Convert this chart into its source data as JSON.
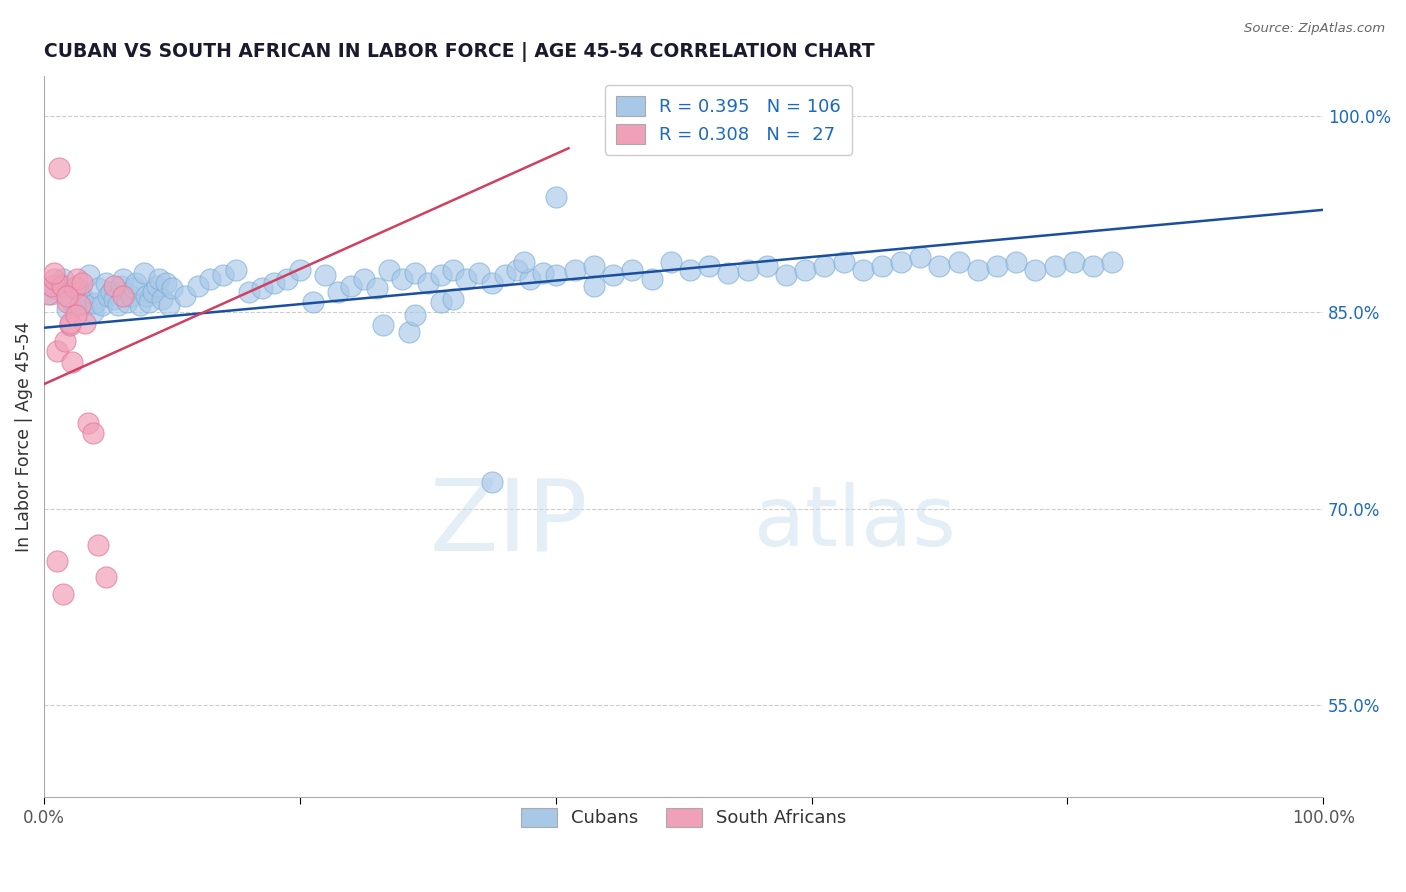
{
  "title": "CUBAN VS SOUTH AFRICAN IN LABOR FORCE | AGE 45-54 CORRELATION CHART",
  "source": "Source: ZipAtlas.com",
  "ylabel": "In Labor Force | Age 45-54",
  "ytick_vals": [
    0.55,
    0.7,
    0.85,
    1.0
  ],
  "ytick_labels": [
    "55.0%",
    "70.0%",
    "85.0%",
    "100.0%"
  ],
  "legend_r_cuban": "0.395",
  "legend_n_cuban": "106",
  "legend_r_sa": "0.308",
  "legend_n_sa": "27",
  "watermark_zip": "ZIP",
  "watermark_atlas": "atlas",
  "blue_scatter": "#a8c8e8",
  "blue_edge": "#7aacd4",
  "pink_scatter": "#f0a0b8",
  "pink_edge": "#e07898",
  "blue_line": "#1a4fa0",
  "pink_line": "#d04060",
  "legend_val_color": "#1a6abf",
  "legend_label_color": "#333333",
  "title_color": "#1a1a2e",
  "ylabel_color": "#333333",
  "tick_color": "#555555",
  "grid_color": "#cccccc",
  "right_tick_color": "#1a6abf",
  "background": "#ffffff",
  "xmin": 0.0,
  "xmax": 1.0,
  "ymin": 0.48,
  "ymax": 1.03,
  "blue_trend_x0": 0.0,
  "blue_trend_x1": 1.0,
  "blue_trend_y0": 0.838,
  "blue_trend_y1": 0.928,
  "pink_trend_x0": 0.0,
  "pink_trend_x1": 0.41,
  "pink_trend_y0": 0.795,
  "pink_trend_y1": 0.975,
  "cubans_x": [
    0.005,
    0.008,
    0.012,
    0.015,
    0.018,
    0.02,
    0.022,
    0.025,
    0.028,
    0.03,
    0.032,
    0.035,
    0.038,
    0.04,
    0.042,
    0.045,
    0.048,
    0.05,
    0.052,
    0.055,
    0.058,
    0.06,
    0.062,
    0.065,
    0.068,
    0.07,
    0.072,
    0.075,
    0.078,
    0.08,
    0.082,
    0.085,
    0.088,
    0.09,
    0.092,
    0.095,
    0.098,
    0.1,
    0.11,
    0.12,
    0.13,
    0.14,
    0.15,
    0.16,
    0.17,
    0.18,
    0.19,
    0.2,
    0.21,
    0.22,
    0.23,
    0.24,
    0.25,
    0.26,
    0.27,
    0.28,
    0.29,
    0.3,
    0.31,
    0.32,
    0.33,
    0.34,
    0.35,
    0.36,
    0.37,
    0.38,
    0.39,
    0.4,
    0.415,
    0.43,
    0.445,
    0.46,
    0.475,
    0.49,
    0.505,
    0.52,
    0.535,
    0.55,
    0.565,
    0.58,
    0.595,
    0.61,
    0.625,
    0.64,
    0.655,
    0.67,
    0.685,
    0.7,
    0.715,
    0.73,
    0.745,
    0.76,
    0.775,
    0.79,
    0.805,
    0.82,
    0.835,
    0.35,
    0.285,
    0.29,
    0.31,
    0.265,
    0.32,
    0.4,
    0.43,
    0.375
  ],
  "cubans_y": [
    0.864,
    0.868,
    0.872,
    0.875,
    0.852,
    0.86,
    0.858,
    0.87,
    0.865,
    0.862,
    0.855,
    0.878,
    0.85,
    0.857,
    0.868,
    0.855,
    0.872,
    0.862,
    0.865,
    0.86,
    0.855,
    0.87,
    0.875,
    0.858,
    0.862,
    0.868,
    0.872,
    0.855,
    0.88,
    0.862,
    0.858,
    0.865,
    0.87,
    0.875,
    0.86,
    0.872,
    0.855,
    0.868,
    0.862,
    0.87,
    0.875,
    0.878,
    0.882,
    0.865,
    0.868,
    0.872,
    0.875,
    0.882,
    0.858,
    0.878,
    0.865,
    0.87,
    0.875,
    0.868,
    0.882,
    0.875,
    0.88,
    0.872,
    0.878,
    0.882,
    0.875,
    0.88,
    0.872,
    0.878,
    0.882,
    0.875,
    0.88,
    0.878,
    0.882,
    0.885,
    0.878,
    0.882,
    0.875,
    0.888,
    0.882,
    0.885,
    0.88,
    0.882,
    0.885,
    0.878,
    0.882,
    0.885,
    0.888,
    0.882,
    0.885,
    0.888,
    0.892,
    0.885,
    0.888,
    0.882,
    0.885,
    0.888,
    0.882,
    0.885,
    0.888,
    0.885,
    0.888,
    0.72,
    0.835,
    0.848,
    0.858,
    0.84,
    0.86,
    0.938,
    0.87,
    0.888
  ],
  "sa_x": [
    0.003,
    0.006,
    0.008,
    0.01,
    0.012,
    0.014,
    0.016,
    0.018,
    0.02,
    0.022,
    0.024,
    0.026,
    0.028,
    0.03,
    0.032,
    0.034,
    0.038,
    0.042,
    0.048,
    0.055,
    0.062,
    0.02,
    0.01,
    0.015,
    0.008,
    0.018,
    0.025
  ],
  "sa_y": [
    0.864,
    0.87,
    0.875,
    0.82,
    0.96,
    0.87,
    0.828,
    0.858,
    0.84,
    0.812,
    0.868,
    0.875,
    0.855,
    0.872,
    0.842,
    0.765,
    0.758,
    0.672,
    0.648,
    0.87,
    0.862,
    0.842,
    0.66,
    0.635,
    0.88,
    0.862,
    0.848
  ]
}
